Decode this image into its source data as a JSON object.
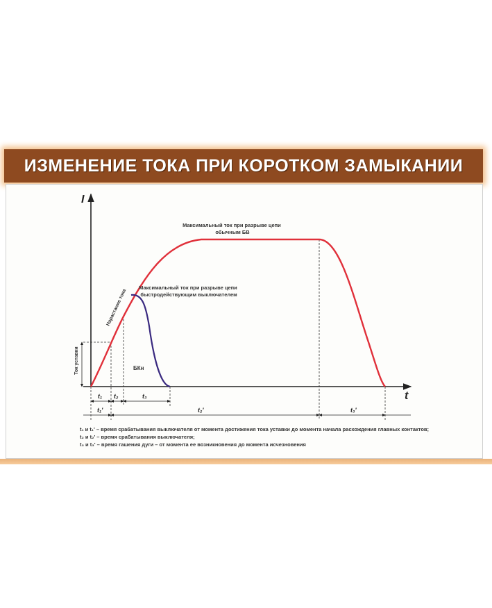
{
  "title": "ИЗМЕНЕНИЕ ТОКА ПРИ КОРОТКОМ ЗАМЫКАНИИ",
  "axes": {
    "y_label": "I",
    "x_label": "t"
  },
  "annotations": {
    "max_current_normal": [
      "Максимальный ток при разрыве цепи",
      "обычным БВ"
    ],
    "max_current_fast": [
      "Максимальный ток при разрыве цепи",
      "быстродействующим выключателем"
    ],
    "current_rise": "Нарастание тока",
    "setting_current": "Ток уставки",
    "fast_breaker": "БКн"
  },
  "intervals": {
    "t1": "t₁",
    "t2": "t₂",
    "t3": "t₃",
    "t1p": "t₁'",
    "t2p": "t₂'",
    "t3p": "t₃'"
  },
  "legend": [
    "t₁ и t₁' – время срабатывания выключателя от момента достижения тока уставки до момента начала расхождения главных контактов;",
    "t₂ и t₂' – время срабатывания выключателя;",
    "t₃ и t₃' – время гашения дуги – от момента ее возникновения до момента исчезновения"
  ],
  "colors": {
    "title_bar": "#8e4a20",
    "normal_curve": "#e0303a",
    "fast_curve": "#3a2a80"
  }
}
